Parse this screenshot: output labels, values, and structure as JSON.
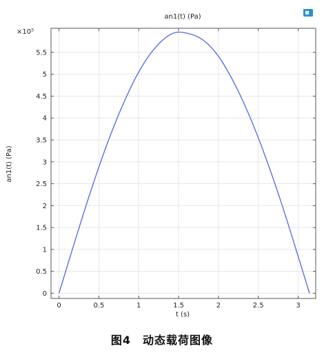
{
  "caption": "图4　动态载荷图像",
  "colors": {
    "line": "#5b6ee8",
    "grid": "#e6e6e6",
    "axis": "#555555",
    "icon": "#2e8fd6"
  },
  "icon": "legend-toggle-icon",
  "chart_data": {
    "type": "line",
    "title": "an1(t) (Pa)",
    "xlabel": "t (s)",
    "ylabel": "an1(t) (Pa)",
    "y_multiplier": "×10⁵",
    "xlim": [
      -0.1,
      3.22
    ],
    "ylim": [
      -0.12,
      6.05
    ],
    "grid": true,
    "x_ticks": [
      0,
      0.5,
      1,
      1.5,
      2,
      2.5,
      3
    ],
    "x_tick_labels": [
      "0",
      "0.5",
      "1",
      "1.5",
      "2",
      "2.5",
      "3"
    ],
    "y_ticks": [
      0,
      0.5,
      1,
      1.5,
      2,
      2.5,
      3,
      3.5,
      4,
      4.5,
      5,
      5.5
    ],
    "y_tick_labels": [
      "0",
      "0.5",
      "1",
      "1.5",
      "2",
      "2.5",
      "3",
      "3.5",
      "4",
      "4.5",
      "5",
      "5.5"
    ],
    "series": [
      {
        "x": [
          0,
          0.2,
          0.4,
          0.6,
          0.8,
          1.0,
          1.2,
          1.4,
          1.5708,
          1.8,
          2.0,
          2.2,
          2.4,
          2.6,
          2.8,
          3.0,
          3.1416
        ],
        "y": [
          0,
          1.19,
          2.34,
          3.39,
          4.3,
          5.05,
          5.59,
          5.91,
          5.95,
          5.79,
          5.41,
          4.79,
          4.0,
          3.06,
          2.0,
          0.84,
          0
        ]
      }
    ]
  }
}
